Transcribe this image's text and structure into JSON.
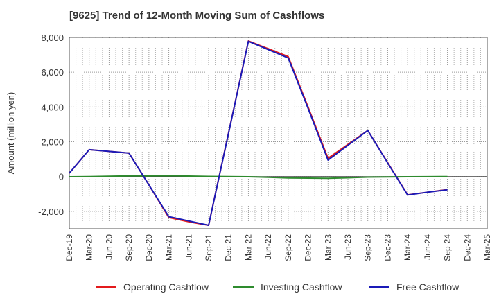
{
  "chart_data": {
    "type": "line",
    "title": "[9625]  Trend of 12-Month Moving Sum of Cashflows",
    "xlabel": "",
    "ylabel": "Amount (million yen)",
    "ylim": [
      -3000,
      8000
    ],
    "yticks": [
      -2000,
      0,
      2000,
      4000,
      6000,
      8000
    ],
    "ytick_labels": [
      "-2,000",
      "0",
      "2,000",
      "4,000",
      "6,000",
      "8,000"
    ],
    "x": [
      "Dec-19",
      "Mar-20",
      "Jun-20",
      "Sep-20",
      "Dec-20",
      "Mar-21",
      "Jun-21",
      "Sep-21",
      "Dec-21",
      "Mar-22",
      "Jun-22",
      "Sep-22",
      "Dec-22",
      "Mar-23",
      "Jun-23",
      "Sep-23",
      "Dec-23",
      "Mar-24",
      "Jun-24",
      "Sep-24",
      "Dec-24",
      "Mar-25"
    ],
    "grid": true,
    "legend_position": "bottom",
    "series": [
      {
        "name": "Operating Cashflow",
        "color": "#e31a1c",
        "values": [
          200,
          1550,
          1450,
          1350,
          -480,
          -2350,
          -2600,
          -2800,
          2500,
          7800,
          7350,
          6900,
          4000,
          1050,
          1850,
          2650,
          800,
          -1050,
          -900,
          -750,
          null,
          null
        ]
      },
      {
        "name": "Investing Cashflow",
        "color": "#2e8b2e",
        "values": [
          -10,
          0,
          20,
          40,
          40,
          50,
          30,
          10,
          0,
          -10,
          -40,
          -80,
          -90,
          -100,
          -70,
          -30,
          -20,
          -10,
          -5,
          0,
          null,
          null
        ]
      },
      {
        "name": "Free Cashflow",
        "color": "#1a1ab8",
        "values": [
          200,
          1550,
          1450,
          1350,
          -480,
          -2300,
          -2550,
          -2800,
          2480,
          7780,
          7300,
          6820,
          3920,
          950,
          1800,
          2650,
          780,
          -1060,
          -900,
          -760,
          null,
          null
        ]
      }
    ]
  }
}
